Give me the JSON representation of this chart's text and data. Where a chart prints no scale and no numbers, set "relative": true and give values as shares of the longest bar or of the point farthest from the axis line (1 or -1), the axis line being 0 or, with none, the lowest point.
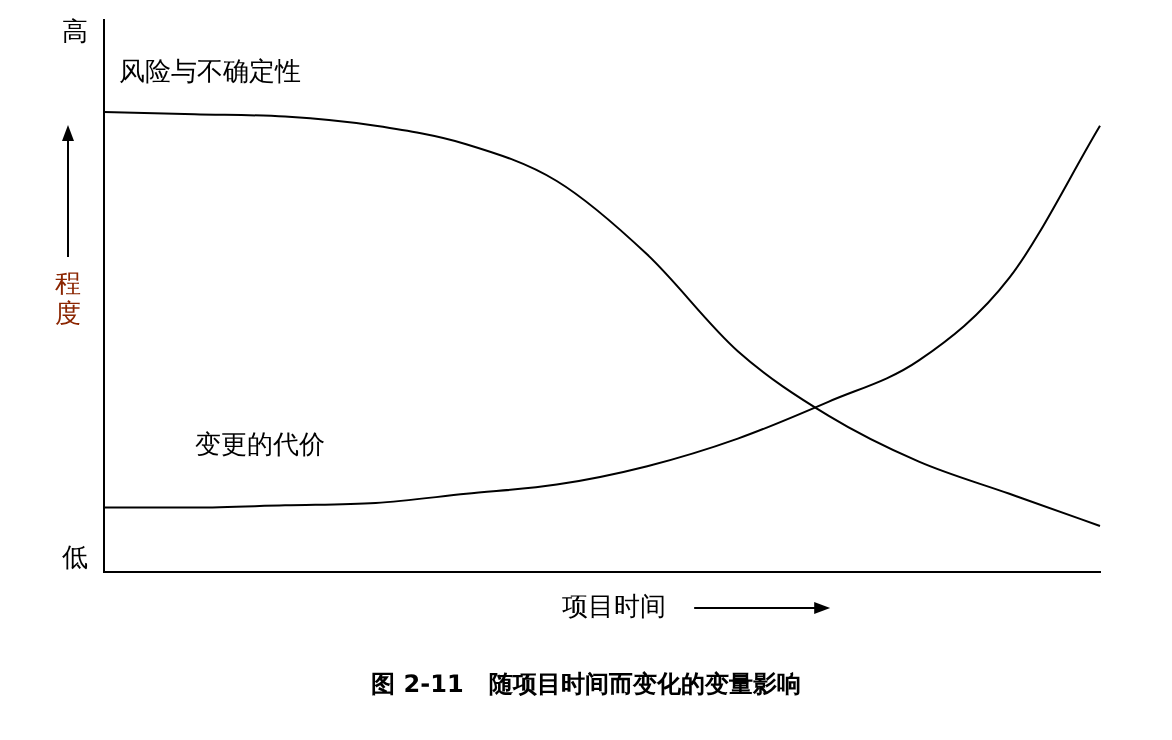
{
  "chart_data": {
    "type": "line",
    "title": "图 2-11   随项目时间而变化的变量影响",
    "xlabel": "项目时间",
    "ylabel": "程度",
    "annotations": [
      "高",
      "低"
    ],
    "relative": true,
    "legend": false,
    "grid": false,
    "marker": "none",
    "line_style": "solid",
    "categories": [
      null,
      null,
      null,
      null,
      null,
      null,
      null,
      null,
      null,
      null,
      null,
      null
    ],
    "series": [
      {
        "name": "风险与不确定性",
        "color": "#000000",
        "values": [
          1.0,
          0.995,
          0.99,
          0.97,
          0.93,
          0.85,
          0.69,
          0.48,
          0.34,
          0.24,
          0.17,
          0.1
        ]
      },
      {
        "name": "变更的代价",
        "color": "#000000",
        "values": [
          0.14,
          0.14,
          0.145,
          0.15,
          0.17,
          0.19,
          0.23,
          0.29,
          0.37,
          0.46,
          0.64,
          0.97
        ]
      }
    ]
  }
}
